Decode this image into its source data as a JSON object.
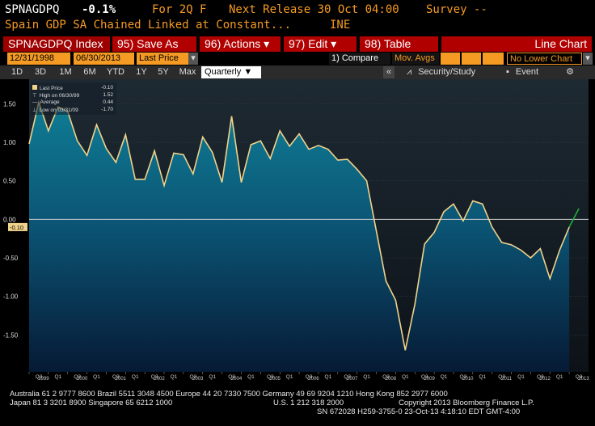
{
  "header": {
    "ticker": "SPNAGDPQ",
    "last_value": "-0.1%",
    "for_label": "For 2Q F",
    "next_release": "Next Release 30 Oct 04:00",
    "survey": "Survey --",
    "description": "Spain GDP SA Chained Linked at Constant...",
    "source": "INE"
  },
  "toolbar": {
    "index_label": "SPNAGDPQ Index",
    "save_as": "95) Save As",
    "actions": "96) Actions",
    "edit": "97) Edit",
    "table": "98) Table",
    "chart_type": "Line Chart"
  },
  "controls": {
    "start_date": "12/31/1998",
    "end_date": "06/30/2013",
    "price_field": "Last Price",
    "compare": "1) Compare",
    "mov_avgs": "Mov. Avgs",
    "lower_chart": "No Lower Chart"
  },
  "periods": {
    "tabs": [
      "1D",
      "3D",
      "1M",
      "6M",
      "YTD",
      "1Y",
      "5Y",
      "Max"
    ],
    "frequency": "Quarterly",
    "security_study": "Security/Study",
    "event": "Event"
  },
  "legend": {
    "last_label": "Last Price",
    "last_value": "-0.10",
    "high_label": "High on 06/30/99",
    "high_value": "1.52",
    "avg_label": "Average",
    "avg_value": "0.44",
    "low_label": "Low on 03/31/09",
    "low_value": "-1.70"
  },
  "chart_data": {
    "type": "area",
    "y_ticks": [
      "1.50",
      "1.00",
      "0.50",
      "0.00",
      "-0.50",
      "-1.00",
      "-1.50"
    ],
    "y_tick_values": [
      1.5,
      1.0,
      0.5,
      0.0,
      -0.5,
      -1.0,
      -1.5
    ],
    "ylim": [
      -1.98,
      1.82
    ],
    "last_label": "-0.10",
    "x_quarter_labels": [
      "Q3",
      "Q1",
      "Q3",
      "Q1",
      "Q3",
      "Q1",
      "Q3",
      "Q1",
      "Q3",
      "Q1",
      "Q3",
      "Q1",
      "Q3",
      "Q1",
      "Q3",
      "Q1",
      "Q3",
      "Q1",
      "Q3",
      "Q1",
      "Q3",
      "Q1",
      "Q3",
      "Q1",
      "Q3",
      "Q1",
      "Q3",
      "Q1",
      "Q3"
    ],
    "x_year_labels": [
      "1999",
      "2000",
      "2001",
      "2002",
      "2003",
      "2004",
      "2005",
      "2006",
      "2007",
      "2008",
      "2009",
      "2010",
      "2011",
      "2012",
      "2013"
    ],
    "x_start": "1998-Q4",
    "values": [
      0.98,
      1.52,
      1.15,
      1.46,
      1.4,
      1.02,
      0.83,
      1.23,
      0.92,
      0.74,
      1.1,
      0.52,
      0.52,
      0.89,
      0.44,
      0.86,
      0.84,
      0.59,
      1.07,
      0.87,
      0.48,
      1.34,
      0.48,
      0.97,
      1.02,
      0.79,
      1.15,
      0.95,
      1.11,
      0.91,
      0.96,
      0.91,
      0.77,
      0.78,
      0.65,
      0.5,
      -0.15,
      -0.8,
      -1.05,
      -1.7,
      -1.1,
      -0.32,
      -0.17,
      0.1,
      0.2,
      -0.02,
      0.24,
      0.2,
      -0.1,
      -0.3,
      -0.33,
      -0.4,
      -0.5,
      -0.38,
      -0.77,
      -0.4,
      -0.1
    ],
    "projection": [
      -0.1,
      0.14
    ],
    "line_color": "#f0d38a",
    "projection_color": "#1fae3a",
    "zero_line_color": "#cccccc"
  },
  "footer": {
    "line1": "Australia 61 2 9777 8600 Brazil 5511 3048 4500 Europe 44 20 7330 7500 Germany 49 69 9204 1210 Hong Kong 852 2977 6000",
    "line2_left": "Japan 81 3 3201 8900        Singapore 65 6212 1000",
    "line2_mid": "U.S. 1 212 318 2000",
    "line2_right": "Copyright 2013 Bloomberg Finance L.P.",
    "line3": "SN 672028 H259-3755-0 23-Oct-13  4:18:10 EDT  GMT-4:00"
  }
}
